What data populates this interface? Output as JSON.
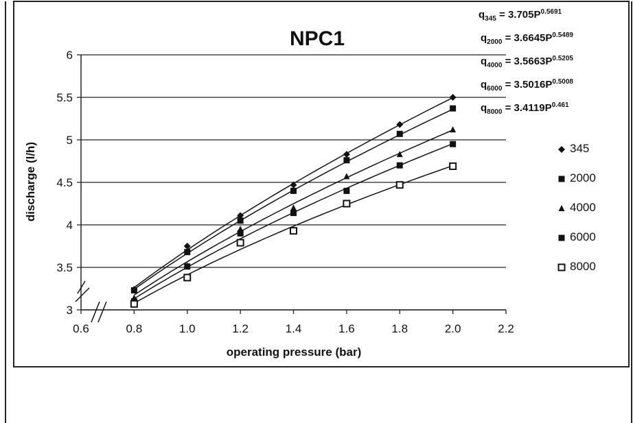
{
  "chart_data": {
    "type": "scatter",
    "title": "NPC1",
    "xlabel": "operating pressure (bar)",
    "ylabel": "discharge (l/h)",
    "xlim": [
      0.6,
      2.2
    ],
    "ylim": [
      3,
      6
    ],
    "x_ticks": [
      "0.6",
      "0.8",
      "1.0",
      "1.2",
      "1.4",
      "1.6",
      "1.8",
      "2.0",
      "2.2"
    ],
    "y_ticks": [
      "3",
      "3.5",
      "4",
      "4.5",
      "5",
      "5.5",
      "6"
    ],
    "grid": "horizontal",
    "legend_position": "right",
    "x": [
      0.8,
      1.0,
      1.2,
      1.4,
      1.6,
      1.8,
      2.0
    ],
    "series": [
      {
        "name": "345",
        "marker": "diamond",
        "values": [
          3.24,
          3.75,
          4.11,
          4.47,
          4.83,
          5.18,
          5.5
        ],
        "fit": {
          "a": 3.705,
          "b": 0.5691
        }
      },
      {
        "name": "2000",
        "marker": "square",
        "values": [
          3.23,
          3.68,
          4.05,
          4.4,
          4.76,
          5.07,
          5.37
        ],
        "fit": {
          "a": 3.6645,
          "b": 0.5489
        }
      },
      {
        "name": "4000",
        "marker": "triangle",
        "values": [
          3.14,
          3.52,
          3.95,
          4.2,
          4.57,
          4.83,
          5.12
        ],
        "fit": {
          "a": 3.5663,
          "b": 0.5205
        }
      },
      {
        "name": "6000",
        "marker": "square",
        "values": [
          3.1,
          3.51,
          3.9,
          4.14,
          4.4,
          4.7,
          4.95
        ],
        "fit": {
          "a": 3.5016,
          "b": 0.5008
        }
      },
      {
        "name": "8000",
        "marker": "square-open",
        "values": [
          3.07,
          3.38,
          3.79,
          3.93,
          4.25,
          4.47,
          4.69
        ],
        "fit": {
          "a": 3.4119,
          "b": 0.461
        }
      }
    ],
    "equations": [
      {
        "lhs": "q",
        "sub": "345",
        "rhs": " = 3.705P",
        "sup": "0.5691"
      },
      {
        "lhs": "q",
        "sub": "2000",
        "rhs": " = 3.6645P",
        "sup": "0.5489"
      },
      {
        "lhs": "q",
        "sub": "4000",
        "rhs": " = 3.5663P",
        "sup": "0.5205"
      },
      {
        "lhs": "q",
        "sub": "6000",
        "rhs": " = 3.5016P",
        "sup": "0.5008"
      },
      {
        "lhs": "q",
        "sub": "8000",
        "rhs": " = 3.4119P",
        "sup": "0.461"
      }
    ]
  }
}
